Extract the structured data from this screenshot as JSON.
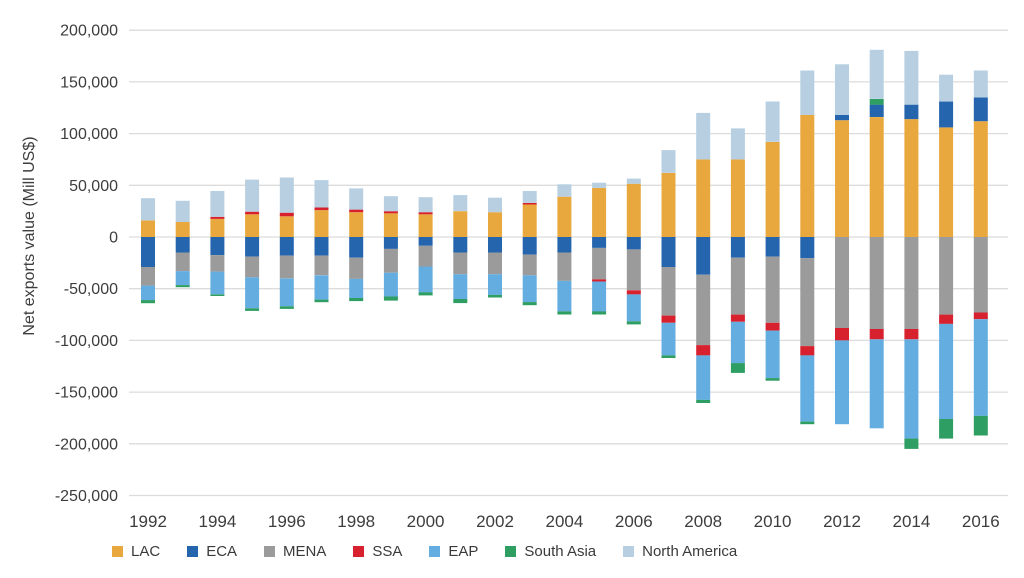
{
  "chart_data": {
    "type": "bar",
    "stacked": true,
    "title": "",
    "xlabel": "",
    "ylabel": "Net exports value (Mill US$)",
    "unit": "Mill US$",
    "years": [
      1992,
      1993,
      1994,
      1995,
      1996,
      1997,
      1998,
      1999,
      2000,
      2001,
      2002,
      2003,
      2004,
      2005,
      2006,
      2007,
      2008,
      2009,
      2010,
      2011,
      2012,
      2013,
      2014,
      2015,
      2016
    ],
    "x_tick_labels": [
      "1992",
      "1994",
      "1996",
      "1998",
      "2000",
      "2002",
      "2004",
      "2006",
      "2008",
      "2010",
      "2012",
      "2014",
      "2016"
    ],
    "y_ticks": [
      200000,
      150000,
      100000,
      50000,
      0,
      -50000,
      -100000,
      -150000,
      -200000,
      -250000
    ],
    "ylim": [
      -250000,
      200000
    ],
    "grid": "horizontal",
    "legend_position": "bottom",
    "series": [
      {
        "name": "LAC",
        "color": "#E8A83E",
        "values": [
          16000,
          14500,
          17500,
          22000,
          20000,
          26000,
          24000,
          23000,
          22000,
          25000,
          24000,
          31500,
          39000,
          47500,
          51500,
          62000,
          75000,
          75000,
          92000,
          118000,
          113000,
          116000,
          114000,
          106000,
          112000
        ]
      },
      {
        "name": "ECA",
        "color": "#2565AE",
        "values": [
          -29000,
          -15000,
          -17500,
          -19000,
          -18000,
          -18000,
          -20000,
          -11500,
          -8500,
          -15000,
          -15000,
          -17000,
          -15000,
          -10500,
          -12000,
          -29000,
          -36500,
          -20000,
          -19000,
          -20500,
          5000,
          12000,
          14000,
          25000,
          23000
        ]
      },
      {
        "name": "MENA",
        "color": "#9B9B9B",
        "values": [
          -18000,
          -18000,
          -16000,
          -20000,
          -22000,
          -19000,
          -20500,
          -23000,
          -20000,
          -21000,
          -21000,
          -20000,
          -27500,
          -30500,
          -39500,
          -47000,
          -68000,
          -55000,
          -64000,
          -85000,
          -88000,
          -89000,
          -89000,
          -75000,
          -73000
        ]
      },
      {
        "name": "SSA",
        "color": "#D7212E",
        "values": [
          0,
          0,
          2000,
          2500,
          3500,
          2500,
          2500,
          2000,
          2000,
          0,
          0,
          1500,
          0,
          -2000,
          -4000,
          -7000,
          -10000,
          -7000,
          -7500,
          -9000,
          -12000,
          -10000,
          -10000,
          -9000,
          -6500
        ]
      },
      {
        "name": "EAP",
        "color": "#64ADE0",
        "values": [
          -14000,
          -13500,
          -22000,
          -30000,
          -27000,
          -23500,
          -18500,
          -23000,
          -25000,
          -24000,
          -20000,
          -26000,
          -29500,
          -29000,
          -26000,
          -31500,
          -43000,
          -40000,
          -46000,
          -64000,
          -81000,
          -86000,
          -96000,
          -92000,
          -93500
        ]
      },
      {
        "name": "South Asia",
        "color": "#2E9E62",
        "values": [
          -3000,
          -2000,
          -1500,
          -2500,
          -2500,
          -2500,
          -3000,
          -4000,
          -3000,
          -4000,
          -2500,
          -3000,
          -3000,
          -3000,
          -3000,
          -2500,
          -3000,
          -9500,
          -2500,
          -2500,
          0,
          5500,
          -10000,
          -19000,
          -19000
        ]
      },
      {
        "name": "North America",
        "color": "#B7CFE1",
        "values": [
          21500,
          20500,
          25000,
          31000,
          34000,
          26500,
          20500,
          14500,
          14500,
          15500,
          14000,
          11500,
          12000,
          5000,
          5000,
          22000,
          45000,
          30000,
          39000,
          43000,
          49000,
          47500,
          52000,
          26000,
          26000
        ]
      }
    ]
  },
  "colors": {
    "text": "#3D3D3D",
    "gridline": "#DCDCDC",
    "background": "#FFFFFF"
  }
}
